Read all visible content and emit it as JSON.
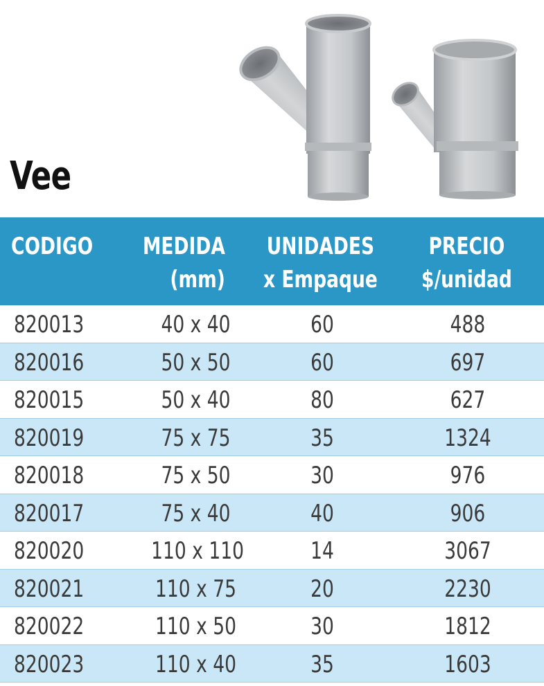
{
  "title": "Vee",
  "header": {
    "codigo": "CODIGO",
    "medida_line1": "MEDIDA",
    "medida_line2": "(mm)",
    "unidades_line1": "UNIDADES",
    "unidades_line2": "x Empaque",
    "precio_line1": "PRECIO",
    "precio_line2": "$/unidad"
  },
  "rows": [
    {
      "codigo": "820013",
      "medida": "40 x 40",
      "unidades": "60",
      "precio": "488"
    },
    {
      "codigo": "820016",
      "medida": "50 x 50",
      "unidades": "60",
      "precio": "697"
    },
    {
      "codigo": "820015",
      "medida": "50 x 40",
      "unidades": "80",
      "precio": "627"
    },
    {
      "codigo": "820019",
      "medida": "75 x 75",
      "unidades": "35",
      "precio": "1324"
    },
    {
      "codigo": "820018",
      "medida": "75 x 50",
      "unidades": "30",
      "precio": "976"
    },
    {
      "codigo": "820017",
      "medida": "75 x 40",
      "unidades": "40",
      "precio": "906"
    },
    {
      "codigo": "820020",
      "medida": "110 x 110",
      "unidades": "14",
      "precio": "3067"
    },
    {
      "codigo": "820021",
      "medida": "110 x 75",
      "unidades": "20",
      "precio": "2230"
    },
    {
      "codigo": "820022",
      "medida": "110 x 50",
      "unidades": "30",
      "precio": "1812"
    },
    {
      "codigo": "820023",
      "medida": "110 x 40",
      "unidades": "35",
      "precio": "1603"
    }
  ],
  "colors": {
    "header_bg": "#2a97c6",
    "row_alt_bg": "#c9e7f6",
    "text": "#3a3a3a"
  }
}
